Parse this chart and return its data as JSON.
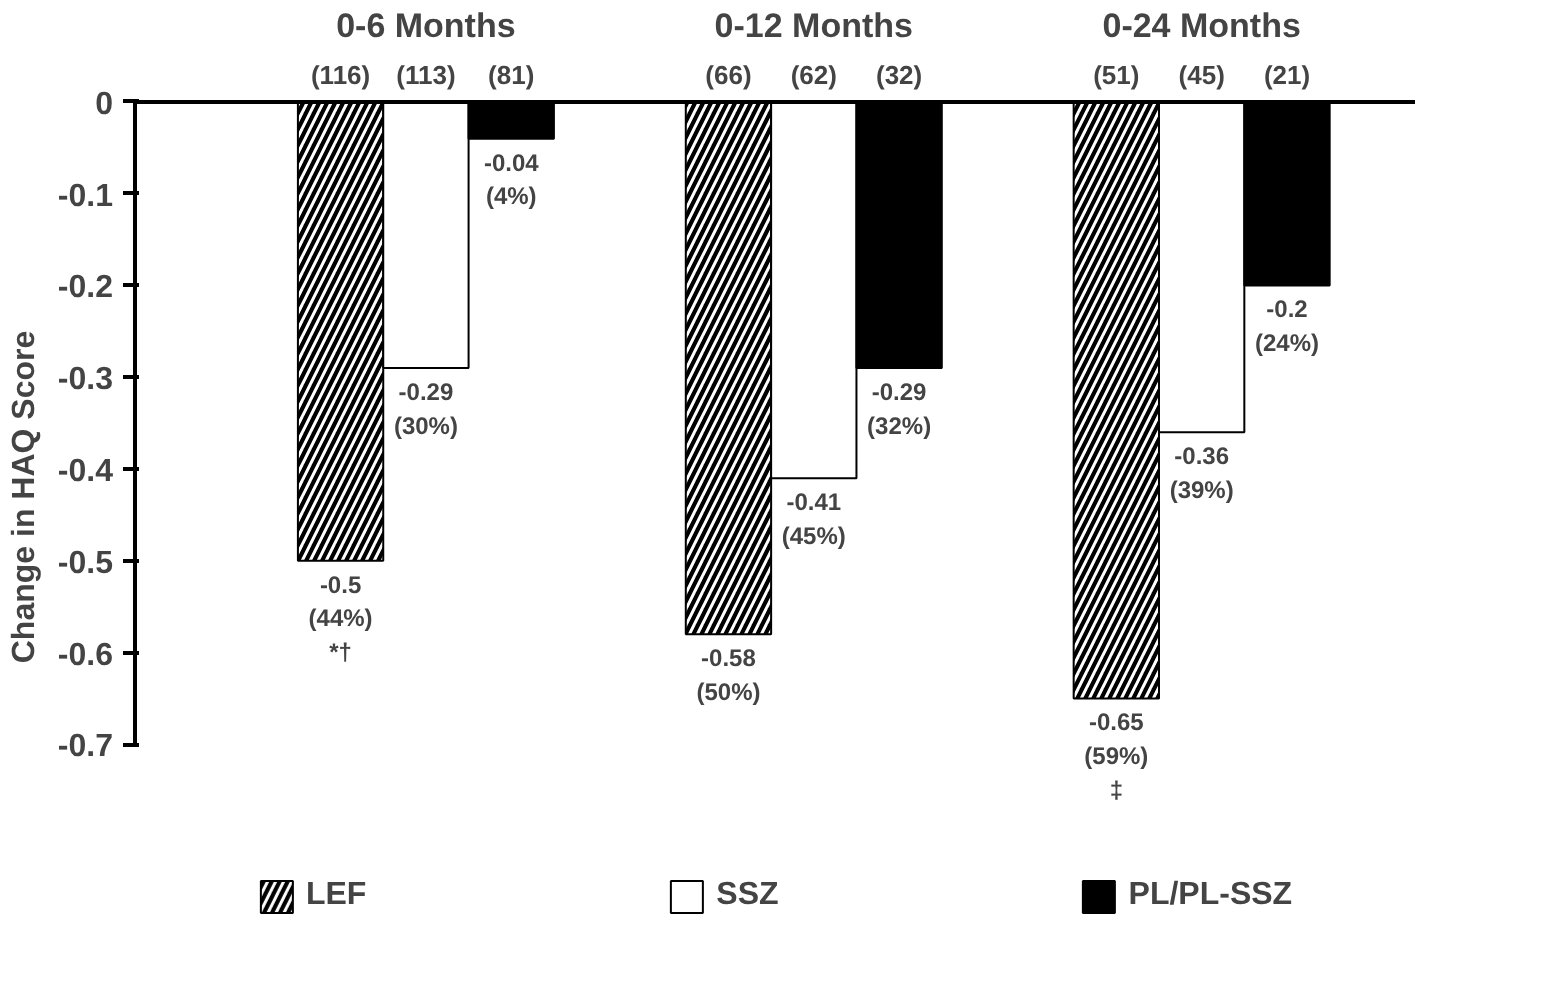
{
  "chart_data": {
    "type": "bar",
    "ylabel": "Change in HAQ Score",
    "categories": [
      "0-6 Months",
      "0-12 Months",
      "0-24 Months"
    ],
    "series": [
      {
        "name": "LEF",
        "color": "#000000",
        "values": [
          -0.5,
          -0.58,
          -0.65
        ],
        "value_labels": [
          "-0.5\n(44%)\n*†",
          "-0.58\n(50%)",
          "-0.65\n(59%)\n‡"
        ]
      },
      {
        "name": "SSZ",
        "color": "#ffffff",
        "values": [
          -0.29,
          -0.41,
          -0.36
        ],
        "value_labels": [
          "-0.29\n(30%)",
          "-0.41\n(45%)",
          "-0.36\n(39%)"
        ]
      },
      {
        "name": "PL/PL-SSZ",
        "color": "#000000",
        "values": [
          -0.04,
          -0.29,
          -0.2
        ],
        "value_labels": [
          "-0.04\n(4%)",
          "-0.29\n(32%)",
          "-0.2\n(24%)"
        ]
      }
    ],
    "annotations": [
      "(116)",
      "(113)",
      "(81)",
      "(66)",
      "(62)",
      "(32)",
      "(51)",
      "(45)",
      "(21)"
    ],
    "ylim": [
      -0.7,
      0
    ],
    "yticks": [
      0,
      -0.1,
      -0.2,
      -0.3,
      -0.4,
      -0.5,
      -0.6,
      -0.7
    ],
    "grid": false,
    "legend": "bottom"
  }
}
